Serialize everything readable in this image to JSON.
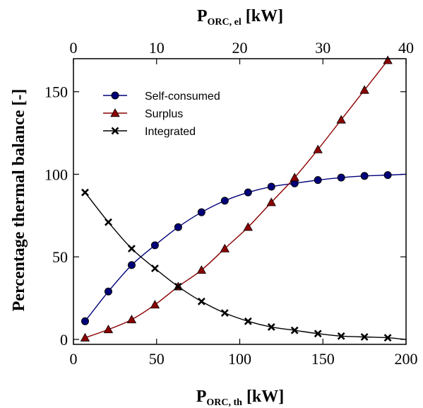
{
  "chart_data": {
    "type": "line",
    "xlabel_bottom": {
      "main": "P",
      "sub": "ORC, th",
      "unit": " [kW]"
    },
    "xlabel_top": {
      "main": "P",
      "sub": "ORC, el",
      "unit": " [kW]"
    },
    "ylabel": "Percentage thermal balance [-]",
    "xlim": [
      0,
      200
    ],
    "xlim_top": [
      0,
      40
    ],
    "ylim": [
      -3,
      170
    ],
    "xticks": [
      0,
      50,
      100,
      150,
      200
    ],
    "xticks_top": [
      0,
      10,
      20,
      30,
      40
    ],
    "yticks": [
      0,
      50,
      100,
      150
    ],
    "grid": false,
    "legend_position": "top-left",
    "colors": {
      "Self-consumed": "#00007a",
      "Surplus": "#8b0000",
      "Integrated": "#000000"
    },
    "x": [
      7,
      21,
      35,
      49,
      63,
      77,
      91,
      105,
      119,
      133,
      147,
      161,
      175,
      189
    ],
    "series": [
      {
        "name": "Self-consumed",
        "marker": "circle",
        "values": [
          11,
          29,
          45,
          57,
          68,
          77,
          84,
          89,
          92.5,
          94.5,
          96.5,
          98,
          99,
          99.5
        ]
      },
      {
        "name": "Surplus",
        "marker": "triangle",
        "values": [
          1,
          6,
          12,
          21,
          32,
          42,
          55,
          68,
          83,
          98,
          115,
          133,
          151,
          169
        ]
      },
      {
        "name": "Integrated",
        "marker": "x",
        "values": [
          89,
          71,
          55,
          43,
          32,
          23,
          16,
          11,
          7.5,
          5.5,
          3.5,
          2,
          1.5,
          1
        ]
      }
    ]
  }
}
